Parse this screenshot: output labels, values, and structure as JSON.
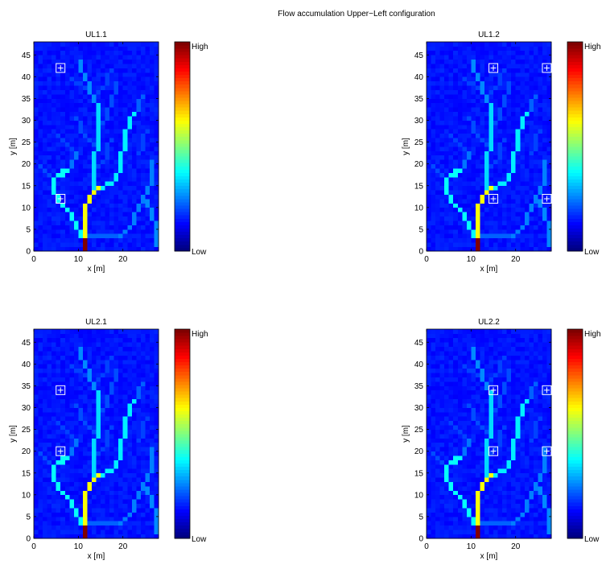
{
  "figure": {
    "title": "Flow accumulation Upper−Left configuration"
  },
  "chart_data": [
    {
      "type": "heatmap",
      "title": "UL1.1",
      "xlabel": "x [m]",
      "ylabel": "y [m]",
      "xlim": [
        0,
        28
      ],
      "ylim": [
        0,
        48
      ],
      "xticks": [
        0,
        10,
        20
      ],
      "yticks": [
        0,
        5,
        10,
        15,
        20,
        25,
        30,
        35,
        40,
        45
      ],
      "colorbar": {
        "high": "High",
        "low": "Low"
      },
      "markers": [
        {
          "x": 6,
          "y": 42
        },
        {
          "x": 6,
          "y": 12
        }
      ]
    },
    {
      "type": "heatmap",
      "title": "UL1.2",
      "xlabel": "x [m]",
      "ylabel": "y [m]",
      "xlim": [
        0,
        28
      ],
      "ylim": [
        0,
        48
      ],
      "xticks": [
        0,
        10,
        20
      ],
      "yticks": [
        0,
        5,
        10,
        15,
        20,
        25,
        30,
        35,
        40,
        45
      ],
      "colorbar": {
        "high": "High",
        "low": "Low"
      },
      "markers": [
        {
          "x": 15,
          "y": 42
        },
        {
          "x": 27,
          "y": 42
        },
        {
          "x": 15,
          "y": 12
        },
        {
          "x": 27,
          "y": 12
        }
      ]
    },
    {
      "type": "heatmap",
      "title": "UL2.1",
      "xlabel": "x [m]",
      "ylabel": "y [m]",
      "xlim": [
        0,
        28
      ],
      "ylim": [
        0,
        48
      ],
      "xticks": [
        0,
        10,
        20
      ],
      "yticks": [
        0,
        5,
        10,
        15,
        20,
        25,
        30,
        35,
        40,
        45
      ],
      "colorbar": {
        "high": "High",
        "low": "Low"
      },
      "markers": [
        {
          "x": 6,
          "y": 34
        },
        {
          "x": 6,
          "y": 20
        }
      ]
    },
    {
      "type": "heatmap",
      "title": "UL2.2",
      "xlabel": "x [m]",
      "ylabel": "y [m]",
      "xlim": [
        0,
        28
      ],
      "ylim": [
        0,
        48
      ],
      "xticks": [
        0,
        10,
        20
      ],
      "yticks": [
        0,
        5,
        10,
        15,
        20,
        25,
        30,
        35,
        40,
        45
      ],
      "colorbar": {
        "high": "High",
        "low": "Low"
      },
      "markers": [
        {
          "x": 15,
          "y": 34
        },
        {
          "x": 27,
          "y": 34
        },
        {
          "x": 15,
          "y": 20
        },
        {
          "x": 27,
          "y": 20
        }
      ]
    }
  ],
  "flow_network": {
    "background_level": 0.12,
    "channels": [
      {
        "level": 1.0,
        "cells": [
          [
            11,
            0
          ],
          [
            11,
            2
          ]
        ]
      },
      {
        "level": 0.62,
        "cells": [
          [
            11,
            3
          ],
          [
            11,
            10
          ],
          [
            12,
            11
          ],
          [
            12,
            12
          ],
          [
            13,
            13
          ],
          [
            14,
            14
          ]
        ]
      },
      {
        "level": 0.38,
        "cells": [
          [
            10,
            3
          ],
          [
            10,
            4
          ],
          [
            9,
            5
          ],
          [
            9,
            6
          ],
          [
            8,
            7
          ],
          [
            8,
            8
          ],
          [
            7,
            9
          ],
          [
            6,
            10
          ],
          [
            5,
            11
          ],
          [
            5,
            12
          ],
          [
            4,
            13
          ],
          [
            4,
            16
          ],
          [
            5,
            17
          ],
          [
            6,
            17
          ],
          [
            6,
            18
          ],
          [
            7,
            18
          ]
        ]
      },
      {
        "level": 0.36,
        "cells": [
          [
            14,
            14
          ],
          [
            15,
            14
          ],
          [
            16,
            15
          ],
          [
            17,
            15
          ],
          [
            18,
            16
          ],
          [
            18,
            17
          ],
          [
            19,
            18
          ],
          [
            19,
            22
          ],
          [
            20,
            23
          ],
          [
            20,
            27
          ],
          [
            21,
            28
          ],
          [
            21,
            30
          ],
          [
            22,
            31
          ]
        ]
      },
      {
        "level": 0.34,
        "cells": [
          [
            13,
            13
          ],
          [
            13,
            22
          ],
          [
            14,
            23
          ],
          [
            14,
            33
          ]
        ]
      },
      {
        "level": 0.26,
        "cells": [
          [
            14,
            33
          ],
          [
            13,
            34
          ],
          [
            13,
            35
          ],
          [
            12,
            36
          ],
          [
            12,
            38
          ],
          [
            11,
            39
          ],
          [
            11,
            40
          ],
          [
            10,
            41
          ],
          [
            10,
            43
          ]
        ]
      },
      {
        "level": 0.24,
        "cells": [
          [
            7,
            18
          ],
          [
            8,
            19
          ],
          [
            8,
            20
          ],
          [
            9,
            21
          ],
          [
            9,
            22
          ]
        ]
      },
      {
        "level": 0.22,
        "cells": [
          [
            22,
            31
          ],
          [
            23,
            32
          ],
          [
            23,
            34
          ],
          [
            24,
            35
          ]
        ]
      },
      {
        "level": 0.22,
        "cells": [
          [
            11,
            3
          ],
          [
            12,
            3
          ],
          [
            13,
            3
          ],
          [
            14,
            3
          ],
          [
            15,
            3
          ],
          [
            16,
            3
          ],
          [
            17,
            3
          ],
          [
            18,
            3
          ],
          [
            19,
            3
          ]
        ]
      },
      {
        "level": 0.25,
        "cells": [
          [
            19,
            3
          ],
          [
            20,
            4
          ],
          [
            21,
            5
          ],
          [
            22,
            6
          ],
          [
            22,
            8
          ],
          [
            23,
            9
          ],
          [
            23,
            10
          ],
          [
            24,
            11
          ],
          [
            24,
            12
          ],
          [
            25,
            13
          ],
          [
            25,
            14
          ],
          [
            26,
            15
          ],
          [
            26,
            20
          ]
        ]
      },
      {
        "level": 0.26,
        "cells": [
          [
            27,
            1
          ],
          [
            27,
            6
          ],
          [
            26,
            7
          ],
          [
            26,
            9
          ],
          [
            25,
            10
          ],
          [
            25,
            11
          ]
        ]
      },
      {
        "level": 0.2,
        "cells": [
          [
            14,
            28
          ],
          [
            15,
            29
          ],
          [
            16,
            30
          ],
          [
            16,
            32
          ],
          [
            17,
            33
          ],
          [
            17,
            35
          ],
          [
            18,
            36
          ],
          [
            18,
            38
          ]
        ]
      },
      {
        "level": 0.2,
        "cells": [
          [
            13,
            24
          ],
          [
            12,
            25
          ],
          [
            11,
            26
          ],
          [
            10,
            27
          ],
          [
            10,
            29
          ],
          [
            9,
            30
          ]
        ]
      },
      {
        "level": 0.2,
        "cells": [
          [
            4,
            16
          ],
          [
            3,
            17
          ],
          [
            2,
            18
          ],
          [
            1,
            19
          ]
        ]
      },
      {
        "level": 0.19,
        "cells": [
          [
            14,
            19
          ],
          [
            15,
            20
          ],
          [
            16,
            21
          ],
          [
            16,
            24
          ],
          [
            17,
            25
          ]
        ]
      },
      {
        "level": 0.19,
        "cells": [
          [
            9,
            22
          ],
          [
            8,
            23
          ],
          [
            7,
            24
          ],
          [
            6,
            25
          ],
          [
            5,
            26
          ]
        ]
      },
      {
        "level": 0.19,
        "cells": [
          [
            12,
            36
          ],
          [
            11,
            37
          ],
          [
            10,
            38
          ],
          [
            9,
            38
          ],
          [
            8,
            39
          ]
        ]
      },
      {
        "level": 0.19,
        "cells": [
          [
            13,
            35
          ],
          [
            14,
            36
          ],
          [
            15,
            37
          ],
          [
            16,
            38
          ],
          [
            16,
            40
          ],
          [
            17,
            41
          ]
        ]
      },
      {
        "level": 0.19,
        "cells": [
          [
            23,
            22
          ],
          [
            24,
            23
          ],
          [
            24,
            26
          ],
          [
            25,
            27
          ]
        ]
      }
    ]
  }
}
